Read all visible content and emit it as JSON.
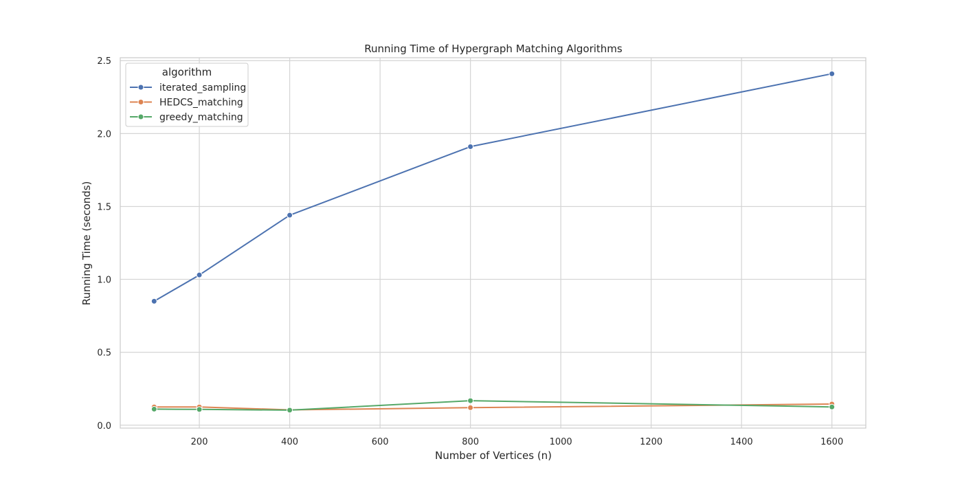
{
  "chart_data": {
    "type": "line",
    "title": "Running Time of Hypergraph Matching Algorithms",
    "xlabel": "Number of Vertices (n)",
    "ylabel": "Running Time (seconds)",
    "xlim": [
      25,
      1675
    ],
    "ylim": [
      -0.02,
      2.52
    ],
    "xticks": [
      200,
      400,
      600,
      800,
      1000,
      1200,
      1400,
      1600
    ],
    "yticks": [
      0.0,
      0.5,
      1.0,
      1.5,
      2.0,
      2.5
    ],
    "xtick_labels": [
      "200",
      "400",
      "600",
      "800",
      "1000",
      "1200",
      "1400",
      "1600"
    ],
    "ytick_labels": [
      "0.0",
      "0.5",
      "1.0",
      "1.5",
      "2.0",
      "2.5"
    ],
    "grid": true,
    "legend": {
      "title": "algorithm",
      "placement": "top-left"
    },
    "x": [
      100,
      200,
      400,
      800,
      1600
    ],
    "series": [
      {
        "name": "iterated_sampling",
        "color": "#4c72b0",
        "values": [
          0.85,
          1.03,
          1.44,
          1.91,
          2.41
        ]
      },
      {
        "name": "HEDCS_matching",
        "color": "#dd8452",
        "values": [
          0.125,
          0.125,
          0.105,
          0.12,
          0.145
        ]
      },
      {
        "name": "greedy_matching",
        "color": "#55a868",
        "values": [
          0.11,
          0.108,
          0.103,
          0.168,
          0.125
        ]
      }
    ]
  }
}
